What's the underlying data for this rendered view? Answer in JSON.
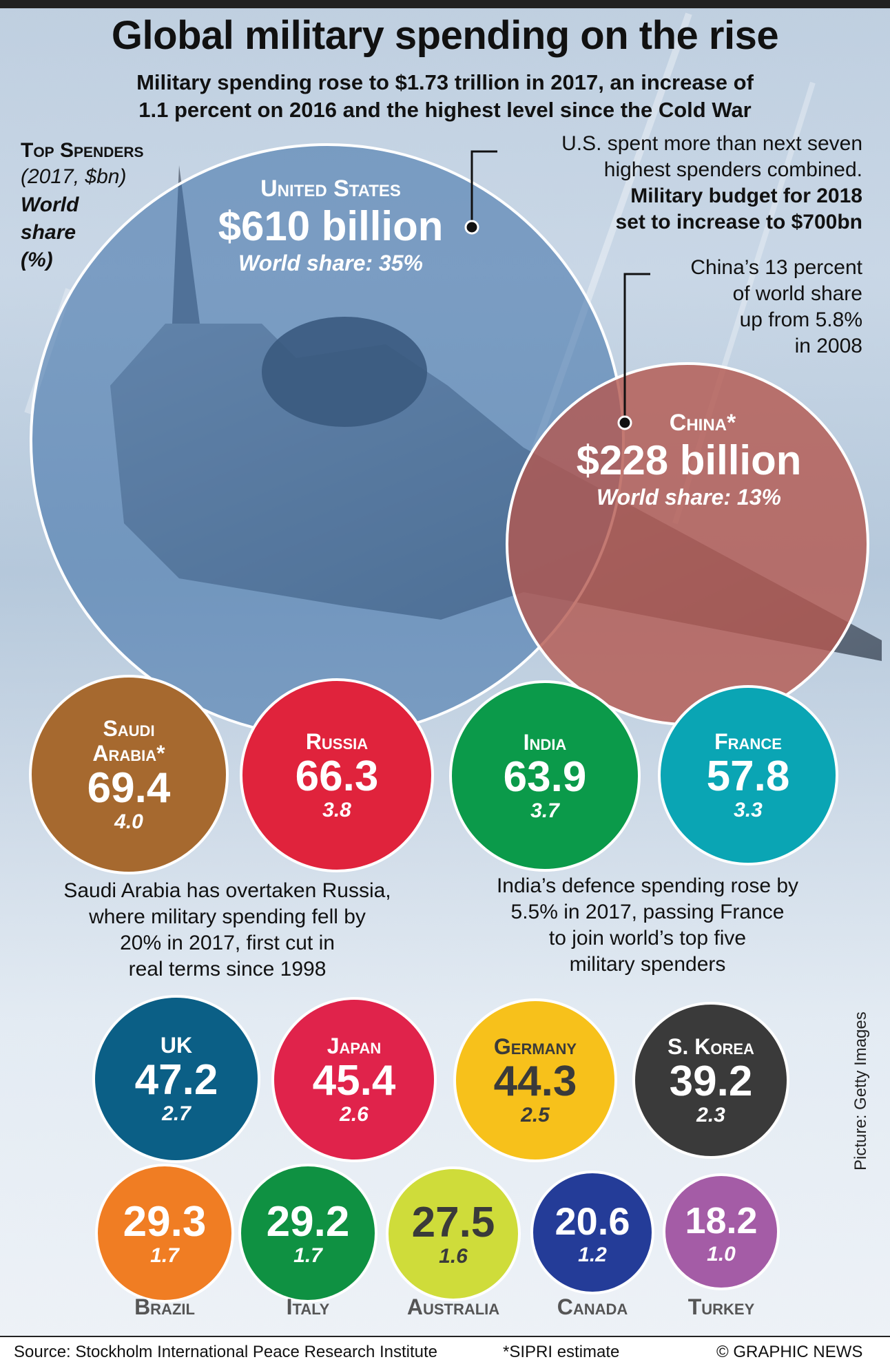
{
  "title": "Global military spending on the rise",
  "subtitle_line1": "Military spending rose to $1.73 trillion in 2017, an increase of",
  "subtitle_line2": "1.1 percent on 2016 and the highest level since the Cold War",
  "legend": {
    "label": "Top Spenders",
    "unit": "(2017, $bn)",
    "share_line1": "World",
    "share_line2": "share",
    "share_line3": "(%)"
  },
  "annotations": {
    "us_line1": "U.S. spent more than next seven",
    "us_line2": "highest spenders combined.",
    "us_bold1": "Military budget for 2018",
    "us_bold2": "set to increase to $700bn",
    "china_line1": "China’s 13 percent",
    "china_line2": "of world share",
    "china_line3": "up from 5.8%",
    "china_line4": "in 2008"
  },
  "notes": {
    "saudi_line1": "Saudi Arabia has overtaken Russia,",
    "saudi_line2": "where military spending fell by",
    "saudi_line3": "20% in 2017, first cut in",
    "saudi_line4": "real terms since 1998",
    "india_line1": "India’s defence spending rose by",
    "india_line2": "5.5% in 2017, passing France",
    "india_line3": "to join world’s top five",
    "india_line4": "military spenders"
  },
  "chart_data": {
    "type": "bubble",
    "unit": "$bn",
    "countries": [
      {
        "name": "United States",
        "value": 610,
        "display_value": "$610 billion",
        "share": 35,
        "share_label": "World share: 35%",
        "color": "#3a6ea5"
      },
      {
        "name": "China*",
        "value": 228,
        "display_value": "$228 billion",
        "share": 13,
        "share_label": "World share: 13%",
        "color": "#b4574f"
      },
      {
        "name_line1": "Saudi",
        "name_line2": "Arabia*",
        "value": 69.4,
        "display_value": "69.4",
        "share": 4.0,
        "share_label": "4.0",
        "color": "#a6692f"
      },
      {
        "name": "Russia",
        "value": 66.3,
        "display_value": "66.3",
        "share": 3.8,
        "share_label": "3.8",
        "color": "#e0233c"
      },
      {
        "name": "India",
        "value": 63.9,
        "display_value": "63.9",
        "share": 3.7,
        "share_label": "3.7",
        "color": "#0b9a4a"
      },
      {
        "name": "France",
        "value": 57.8,
        "display_value": "57.8",
        "share": 3.3,
        "share_label": "3.3",
        "color": "#0aa5b4"
      },
      {
        "name": "UK",
        "value": 47.2,
        "display_value": "47.2",
        "share": 2.7,
        "share_label": "2.7",
        "color": "#0b5f86"
      },
      {
        "name": "Japan",
        "value": 45.4,
        "display_value": "45.4",
        "share": 2.6,
        "share_label": "2.6",
        "color": "#e0234b"
      },
      {
        "name": "Germany",
        "value": 44.3,
        "display_value": "44.3",
        "share": 2.5,
        "share_label": "2.5",
        "color": "#f7c11b"
      },
      {
        "name": "S. Korea",
        "value": 39.2,
        "display_value": "39.2",
        "share": 2.3,
        "share_label": "2.3",
        "color": "#3a3a3a"
      },
      {
        "name": "Brazil",
        "value": 29.3,
        "display_value": "29.3",
        "share": 1.7,
        "share_label": "1.7",
        "color": "#f07d23"
      },
      {
        "name": "Italy",
        "value": 29.2,
        "display_value": "29.2",
        "share": 1.7,
        "share_label": "1.7",
        "color": "#0f9142"
      },
      {
        "name": "Australia",
        "value": 27.5,
        "display_value": "27.5",
        "share": 1.6,
        "share_label": "1.6",
        "color": "#cfdc3a"
      },
      {
        "name": "Canada",
        "value": 20.6,
        "display_value": "20.6",
        "share": 1.2,
        "share_label": "1.2",
        "color": "#243c98"
      },
      {
        "name": "Turkey",
        "value": 18.2,
        "display_value": "18.2",
        "share": 1.0,
        "share_label": "1.0",
        "color": "#a45ca6"
      }
    ]
  },
  "footer": {
    "source": "Source: Stockholm International Peace Research Institute",
    "footnote": "*SIPRI estimate",
    "copyright": "© GRAPHIC NEWS"
  },
  "picture_credit": "Picture: Getty Images"
}
